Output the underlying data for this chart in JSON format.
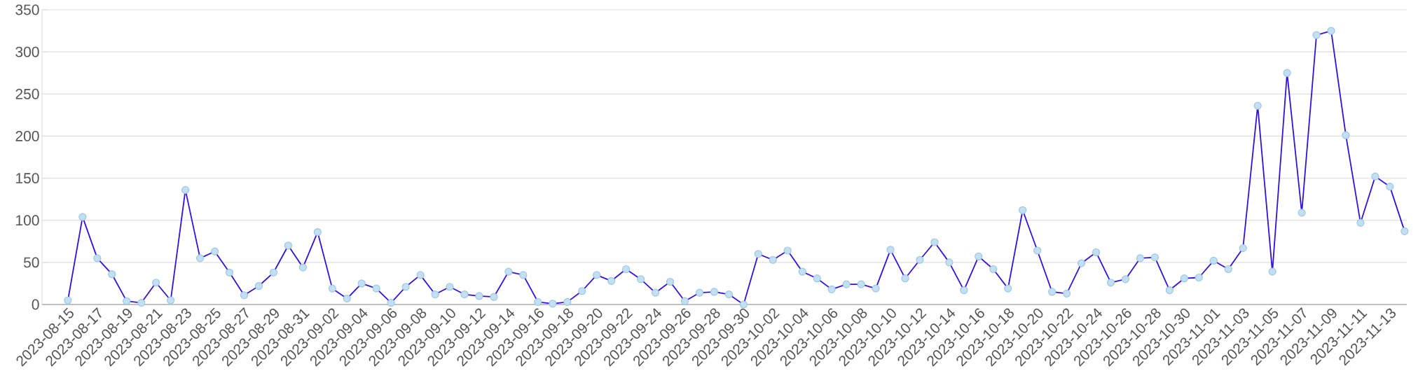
{
  "chart_data": {
    "type": "line",
    "categories": [
      "2023-08-15",
      null,
      "2023-08-17",
      null,
      "2023-08-19",
      null,
      "2023-08-21",
      null,
      "2023-08-23",
      null,
      "2023-08-25",
      null,
      "2023-08-27",
      null,
      "2023-08-29",
      null,
      "2023-08-31",
      null,
      "2023-09-02",
      null,
      "2023-09-04",
      null,
      "2023-09-06",
      null,
      "2023-09-08",
      null,
      "2023-09-10",
      null,
      "2023-09-12",
      null,
      "2023-09-14",
      null,
      "2023-09-16",
      null,
      "2023-09-18",
      null,
      "2023-09-20",
      null,
      "2023-09-22",
      null,
      "2023-09-24",
      null,
      "2023-09-26",
      null,
      "2023-09-28",
      null,
      "2023-09-30",
      null,
      "2023-10-02",
      null,
      "2023-10-04",
      null,
      "2023-10-06",
      null,
      "2023-10-08",
      null,
      "2023-10-10",
      null,
      "2023-10-12",
      null,
      "2023-10-14",
      null,
      "2023-10-16",
      null,
      "2023-10-18",
      null,
      "2023-10-20",
      null,
      "2023-10-22",
      null,
      "2023-10-24",
      null,
      "2023-10-26",
      null,
      "2023-10-28",
      null,
      "2023-10-30",
      null,
      "2023-11-01",
      null,
      "2023-11-03",
      null,
      "2023-11-05",
      null,
      "2023-11-07",
      null,
      "2023-11-09",
      null,
      "2023-11-11",
      null,
      "2023-11-13",
      null
    ],
    "series": [
      {
        "color": "#3311dd",
        "values": [
          5,
          104,
          55,
          36,
          4,
          2,
          26,
          5,
          136,
          55,
          63,
          38,
          11,
          22,
          38,
          70,
          44,
          86,
          19,
          7,
          25,
          19,
          2,
          21,
          35,
          12,
          21,
          12,
          10,
          9,
          39,
          35,
          3,
          1,
          3,
          16,
          35,
          28,
          42,
          30,
          14,
          27,
          4,
          14,
          15,
          12,
          0,
          60,
          53,
          64,
          39,
          31,
          18,
          24,
          24,
          19,
          65,
          31,
          53,
          74,
          50,
          17,
          57,
          42,
          19,
          112,
          64,
          15,
          13,
          49,
          62,
          26,
          30,
          55,
          56,
          17,
          31,
          32,
          52,
          42,
          67,
          236,
          39,
          275,
          109,
          320,
          325,
          201,
          97,
          152,
          140,
          87
        ]
      }
    ],
    "ylim": [
      0,
      350
    ],
    "yticks": [
      0,
      50,
      100,
      150,
      200,
      250,
      300,
      350
    ],
    "grid": "y",
    "marker": "circle",
    "line_style": "solid"
  }
}
